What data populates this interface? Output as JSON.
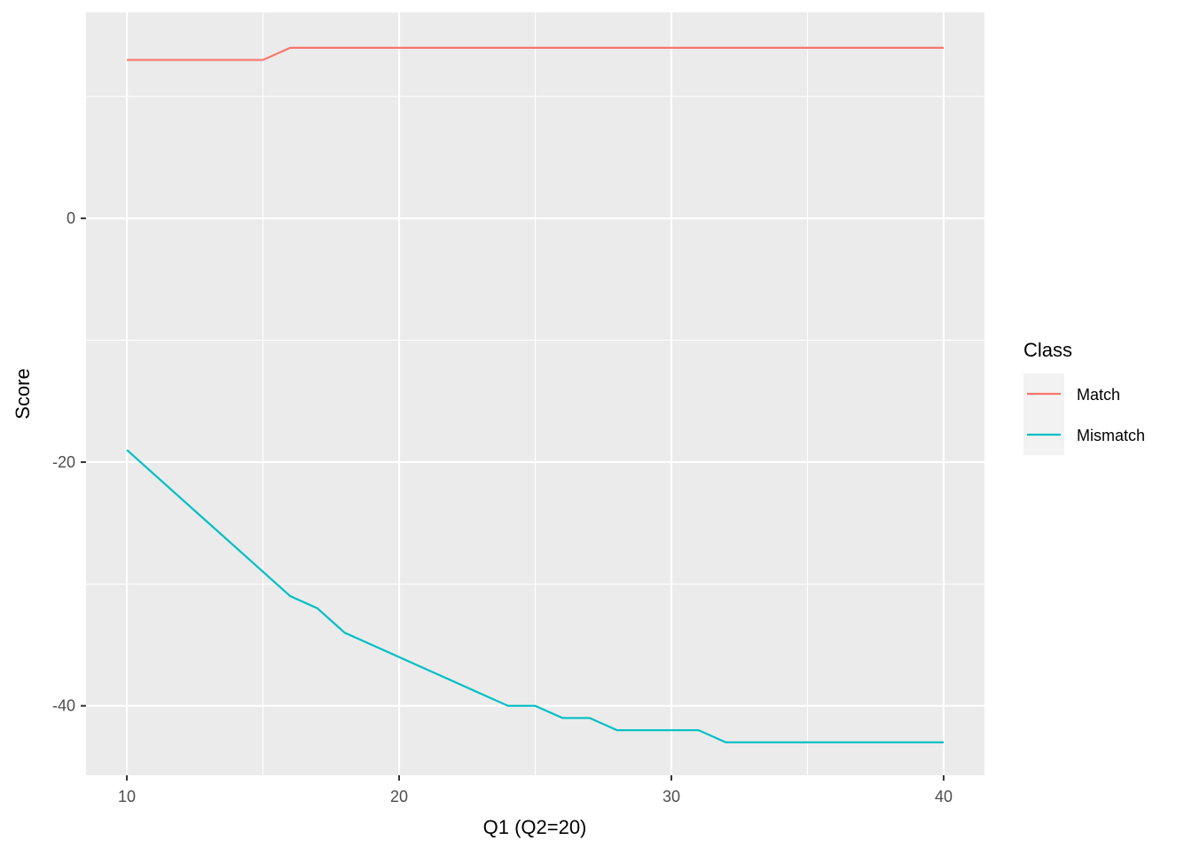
{
  "chart_data": {
    "type": "line",
    "title": "",
    "xlabel": "Q1 (Q2=20)",
    "ylabel": "Score",
    "xlim": [
      8.5,
      41.5
    ],
    "ylim": [
      -45.7,
      16.9
    ],
    "x_ticks": [
      10,
      20,
      30,
      40
    ],
    "x_minor": [
      15,
      25,
      35
    ],
    "y_ticks": [
      0,
      -20,
      -40
    ],
    "y_minor": [
      10,
      -10,
      -30
    ],
    "grid": true,
    "legend": {
      "title": "Class",
      "placement": "right"
    },
    "x": [
      10,
      11,
      12,
      13,
      14,
      15,
      16,
      17,
      18,
      19,
      20,
      21,
      22,
      23,
      24,
      25,
      26,
      27,
      28,
      29,
      30,
      31,
      32,
      33,
      34,
      35,
      36,
      37,
      38,
      39,
      40
    ],
    "series": [
      {
        "name": "Match",
        "color": "#F8766D",
        "values": [
          13,
          13,
          13,
          13,
          13,
          13,
          14,
          14,
          14,
          14,
          14,
          14,
          14,
          14,
          14,
          14,
          14,
          14,
          14,
          14,
          14,
          14,
          14,
          14,
          14,
          14,
          14,
          14,
          14,
          14,
          14
        ]
      },
      {
        "name": "Mismatch",
        "color": "#00BFC4",
        "values": [
          -19,
          -21,
          -23,
          -25,
          -27,
          -29,
          -31,
          -32,
          -34,
          -35,
          -36,
          -37,
          -38,
          -39,
          -40,
          -40,
          -41,
          -41,
          -42,
          -42,
          -42,
          -42,
          -43,
          -43,
          -43,
          -43,
          -43,
          -43,
          -43,
          -43,
          -43
        ]
      }
    ]
  }
}
